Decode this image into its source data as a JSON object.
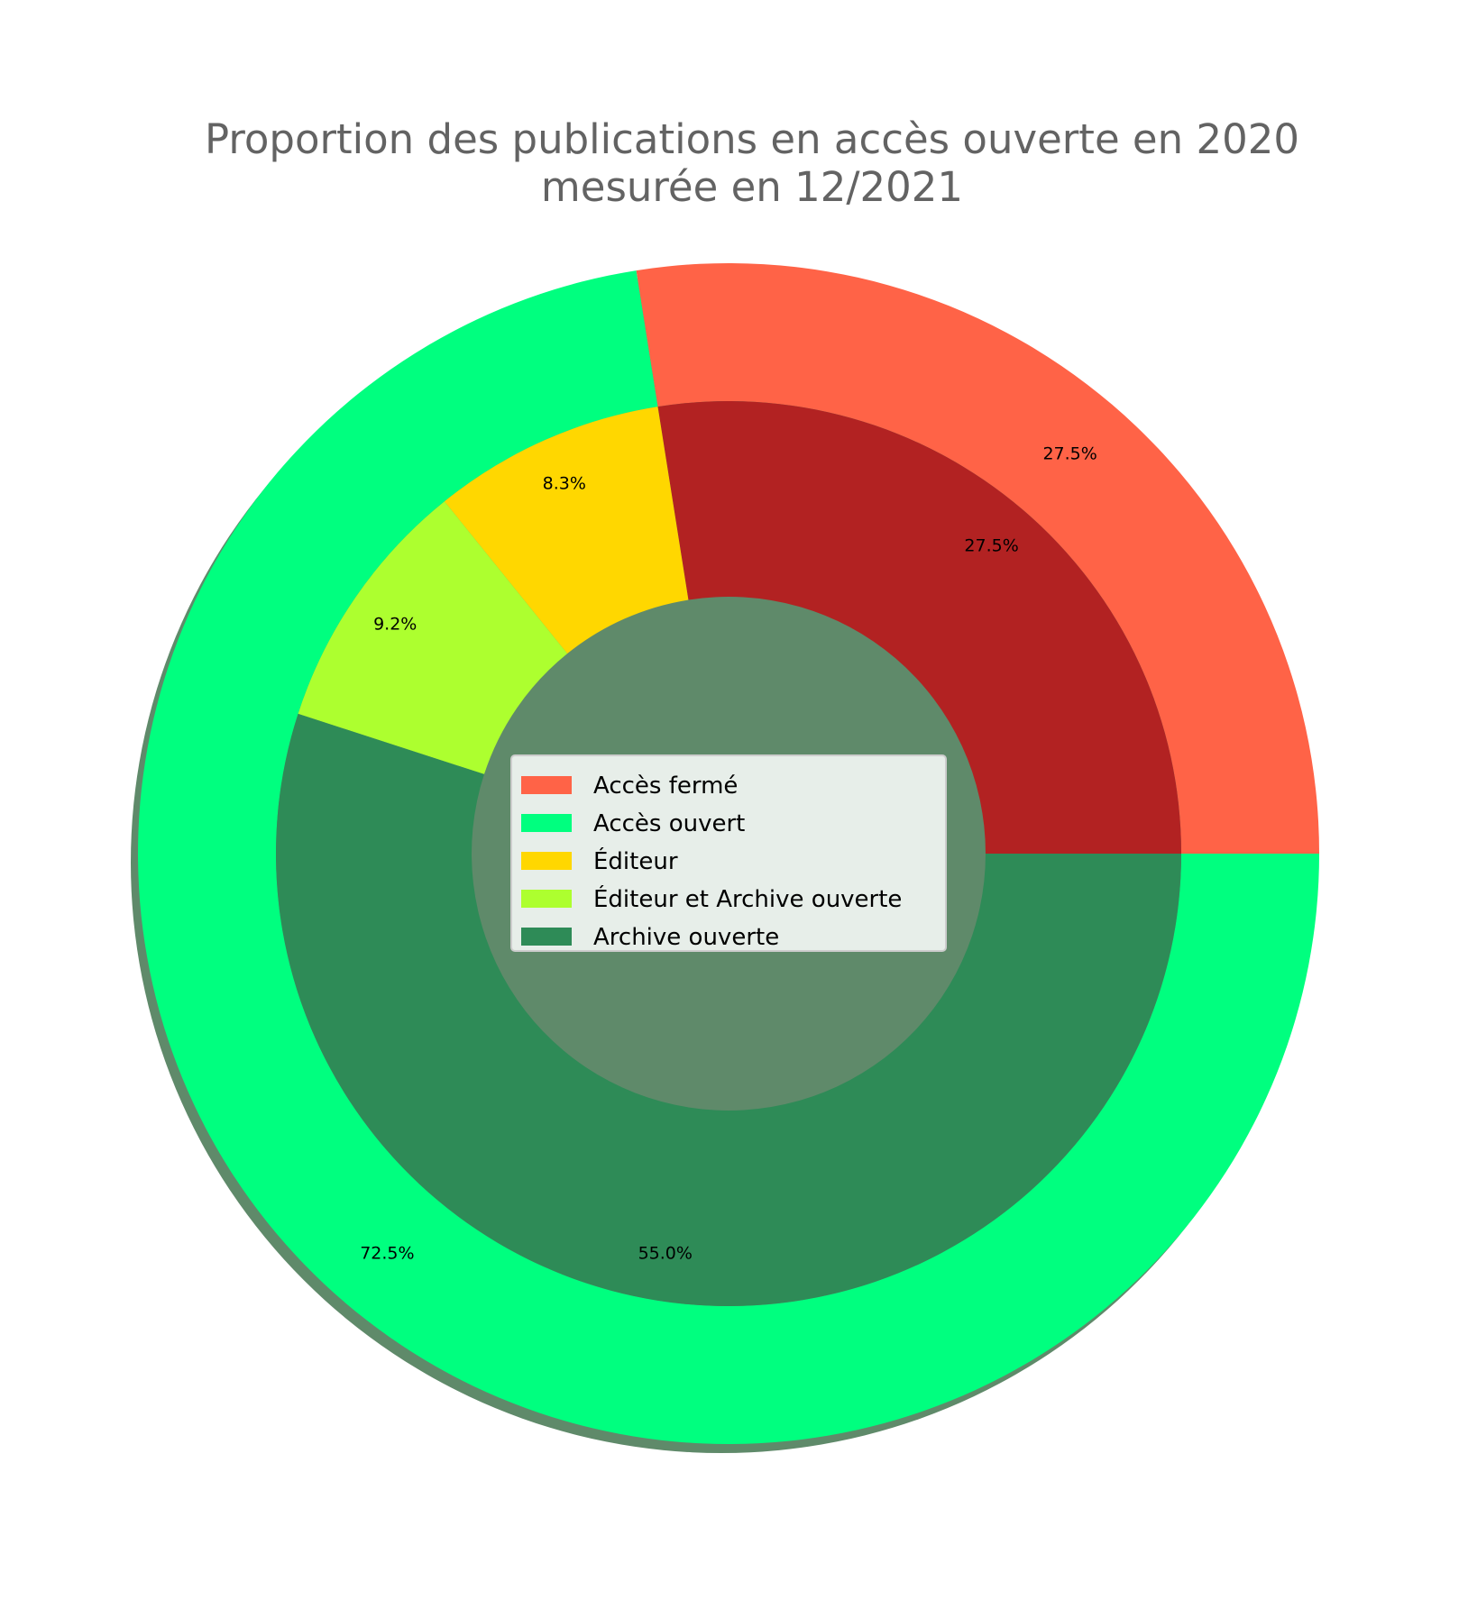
{
  "chart_data": {
    "type": "pie",
    "title_line1": "Proportion des publications en accès ouverte en 2020",
    "title_line2": "mesurée en 12/2021",
    "outer_ring": [
      {
        "name": "Accès fermé",
        "value": 27.5,
        "label": "27.5%",
        "color": "#ff6347"
      },
      {
        "name": "Accès ouvert",
        "value": 72.5,
        "label": "72.5%",
        "color": "#00ff7f"
      }
    ],
    "inner_ring": [
      {
        "name": "Accès fermé",
        "value": 27.5,
        "label": "27.5%",
        "color": "#b22222"
      },
      {
        "name": "Éditeur",
        "value": 8.3,
        "label": "8.3%",
        "color": "#ffd700"
      },
      {
        "name": "Éditeur et Archive ouverte",
        "value": 9.2,
        "label": "9.2%",
        "color": "#adff2f"
      },
      {
        "name": "Archive ouverte",
        "value": 55.0,
        "label": "55.0%",
        "color": "#2e8b57"
      }
    ],
    "legend": {
      "placement": "center",
      "entries": [
        {
          "label": "Accès fermé",
          "color": "#ff6347"
        },
        {
          "label": "Accès ouvert",
          "color": "#00ff7f"
        },
        {
          "label": "Éditeur",
          "color": "#ffd700"
        },
        {
          "label": "Éditeur et Archive ouverte",
          "color": "#adff2f"
        },
        {
          "label": "Archive ouverte",
          "color": "#2e8b57"
        }
      ]
    },
    "shadow": true
  }
}
